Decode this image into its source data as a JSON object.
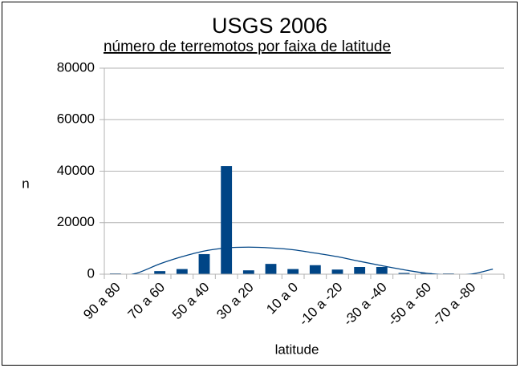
{
  "chart_data": {
    "type": "bar",
    "title": "USGS 2006",
    "subtitle": "número de terremotos por faixa de latitude",
    "x_label": "latitude",
    "y_label": "n",
    "categories": [
      "90 a 80",
      null,
      "70 a 60",
      null,
      "50 a 40",
      null,
      "30 a 20",
      null,
      "10 a 0",
      null,
      "-10 a -20",
      null,
      "-30 a -40",
      null,
      "-50 a -60",
      null,
      "-70 a -80",
      null
    ],
    "values": [
      300,
      200,
      1200,
      2000,
      7800,
      42000,
      1500,
      4000,
      2000,
      3500,
      1800,
      2800,
      2800,
      500,
      400,
      300,
      0,
      0
    ],
    "color": "#004586",
    "trendline": {
      "color": "#004586",
      "values": [
        -1500,
        500,
        4000,
        6800,
        9000,
        10200,
        10500,
        10200,
        9500,
        8200,
        6800,
        5000,
        3300,
        1700,
        400,
        -300,
        0,
        2000
      ]
    },
    "ylim": [
      0,
      80000
    ],
    "yticks": [
      0,
      20000,
      40000,
      60000,
      80000
    ],
    "grid": true
  }
}
